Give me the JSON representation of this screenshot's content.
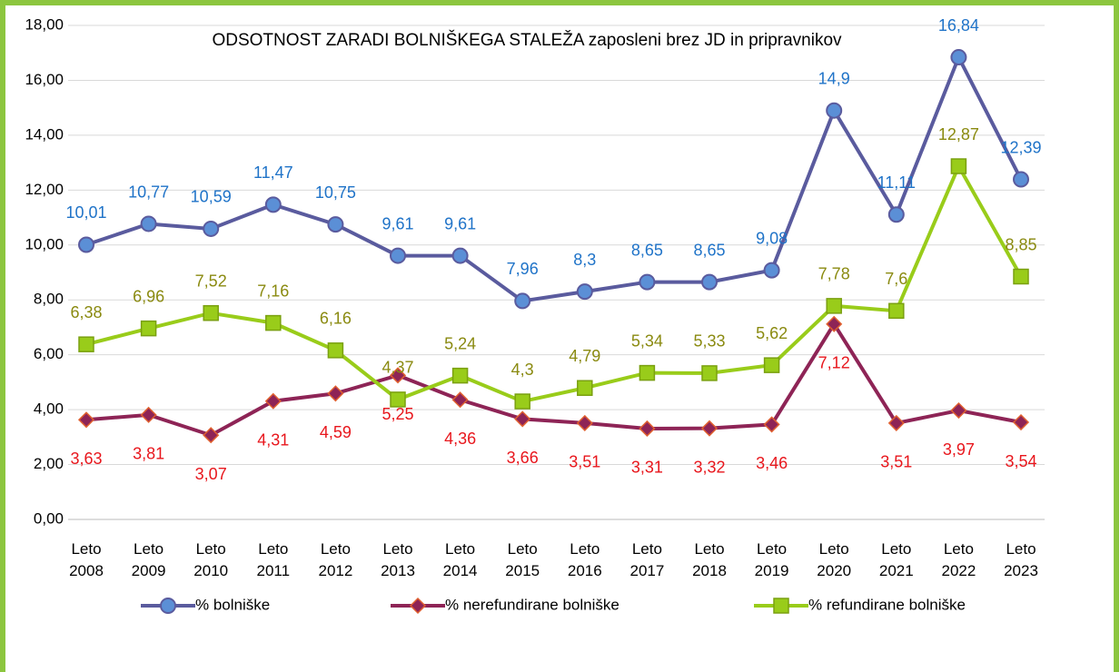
{
  "chart_data": {
    "type": "line",
    "title": "ODSOTNOST ZARADI BOLNIŠKEGA STALEŽA  zaposleni brez JD in pripravnikov",
    "categories": [
      "Leto 2008",
      "Leto 2009",
      "Leto 2010",
      "Leto 2011",
      "Leto 2012",
      "Leto 2013",
      "Leto 2014",
      "Leto 2015",
      "Leto 2016",
      "Leto 2017",
      "Leto 2018",
      "Leto 2019",
      "Leto 2020",
      "Leto 2021",
      "Leto 2022",
      "Leto 2023"
    ],
    "series": [
      {
        "name": "% bolniške",
        "color": "#5a5b9e",
        "marker": "circle",
        "label_color": "#1f73c8",
        "values": [
          10.01,
          10.77,
          10.59,
          11.47,
          10.75,
          9.61,
          9.61,
          7.96,
          8.3,
          8.65,
          8.65,
          9.08,
          14.9,
          11.11,
          16.84,
          12.39
        ],
        "value_labels": [
          "10,01",
          "10,77",
          "10,59",
          "11,47",
          "10,75",
          "9,61",
          "9,61",
          "7,96",
          "8,3",
          "8,65",
          "8,65",
          "9,08",
          "14,9",
          "11,11",
          "16,84",
          "12,39"
        ]
      },
      {
        "name": "% nerefundirane bolniške",
        "color": "#8e2456",
        "marker": "diamond",
        "label_color": "#e8161c",
        "values": [
          3.63,
          3.81,
          3.07,
          4.31,
          4.59,
          5.25,
          4.36,
          3.66,
          3.51,
          3.31,
          3.32,
          3.46,
          7.12,
          3.51,
          3.97,
          3.54
        ],
        "value_labels": [
          "3,63",
          "3,81",
          "3,07",
          "4,31",
          "4,59",
          "5,25",
          "4,36",
          "3,66",
          "3,51",
          "3,31",
          "3,32",
          "3,46",
          "7,12",
          "3,51",
          "3,97",
          "3,54"
        ]
      },
      {
        "name": "% refundirane bolniške",
        "color": "#99cc1a",
        "marker": "square",
        "label_color": "#8a8a10",
        "values": [
          6.38,
          6.96,
          7.52,
          7.16,
          6.16,
          4.37,
          5.24,
          4.3,
          4.79,
          5.34,
          5.33,
          5.62,
          7.78,
          7.6,
          12.87,
          8.85
        ],
        "value_labels": [
          "6,38",
          "6,96",
          "7,52",
          "7,16",
          "6,16",
          "4,37",
          "5,24",
          "4,3",
          "4,79",
          "5,34",
          "5,33",
          "5,62",
          "7,78",
          "7,6",
          "12,87",
          "8,85"
        ]
      }
    ],
    "ylim": [
      0,
      18
    ],
    "yticks": [
      {
        "value": 0,
        "label": "0,00"
      },
      {
        "value": 2,
        "label": "2,00"
      },
      {
        "value": 4,
        "label": "4,00"
      },
      {
        "value": 6,
        "label": "6,00"
      },
      {
        "value": 8,
        "label": "8,00"
      },
      {
        "value": 10,
        "label": "10,00"
      },
      {
        "value": 12,
        "label": "12,00"
      },
      {
        "value": 14,
        "label": "14,00"
      },
      {
        "value": 16,
        "label": "16,00"
      },
      {
        "value": 18,
        "label": "18,00"
      }
    ],
    "grid": true,
    "legend": "bottom"
  }
}
